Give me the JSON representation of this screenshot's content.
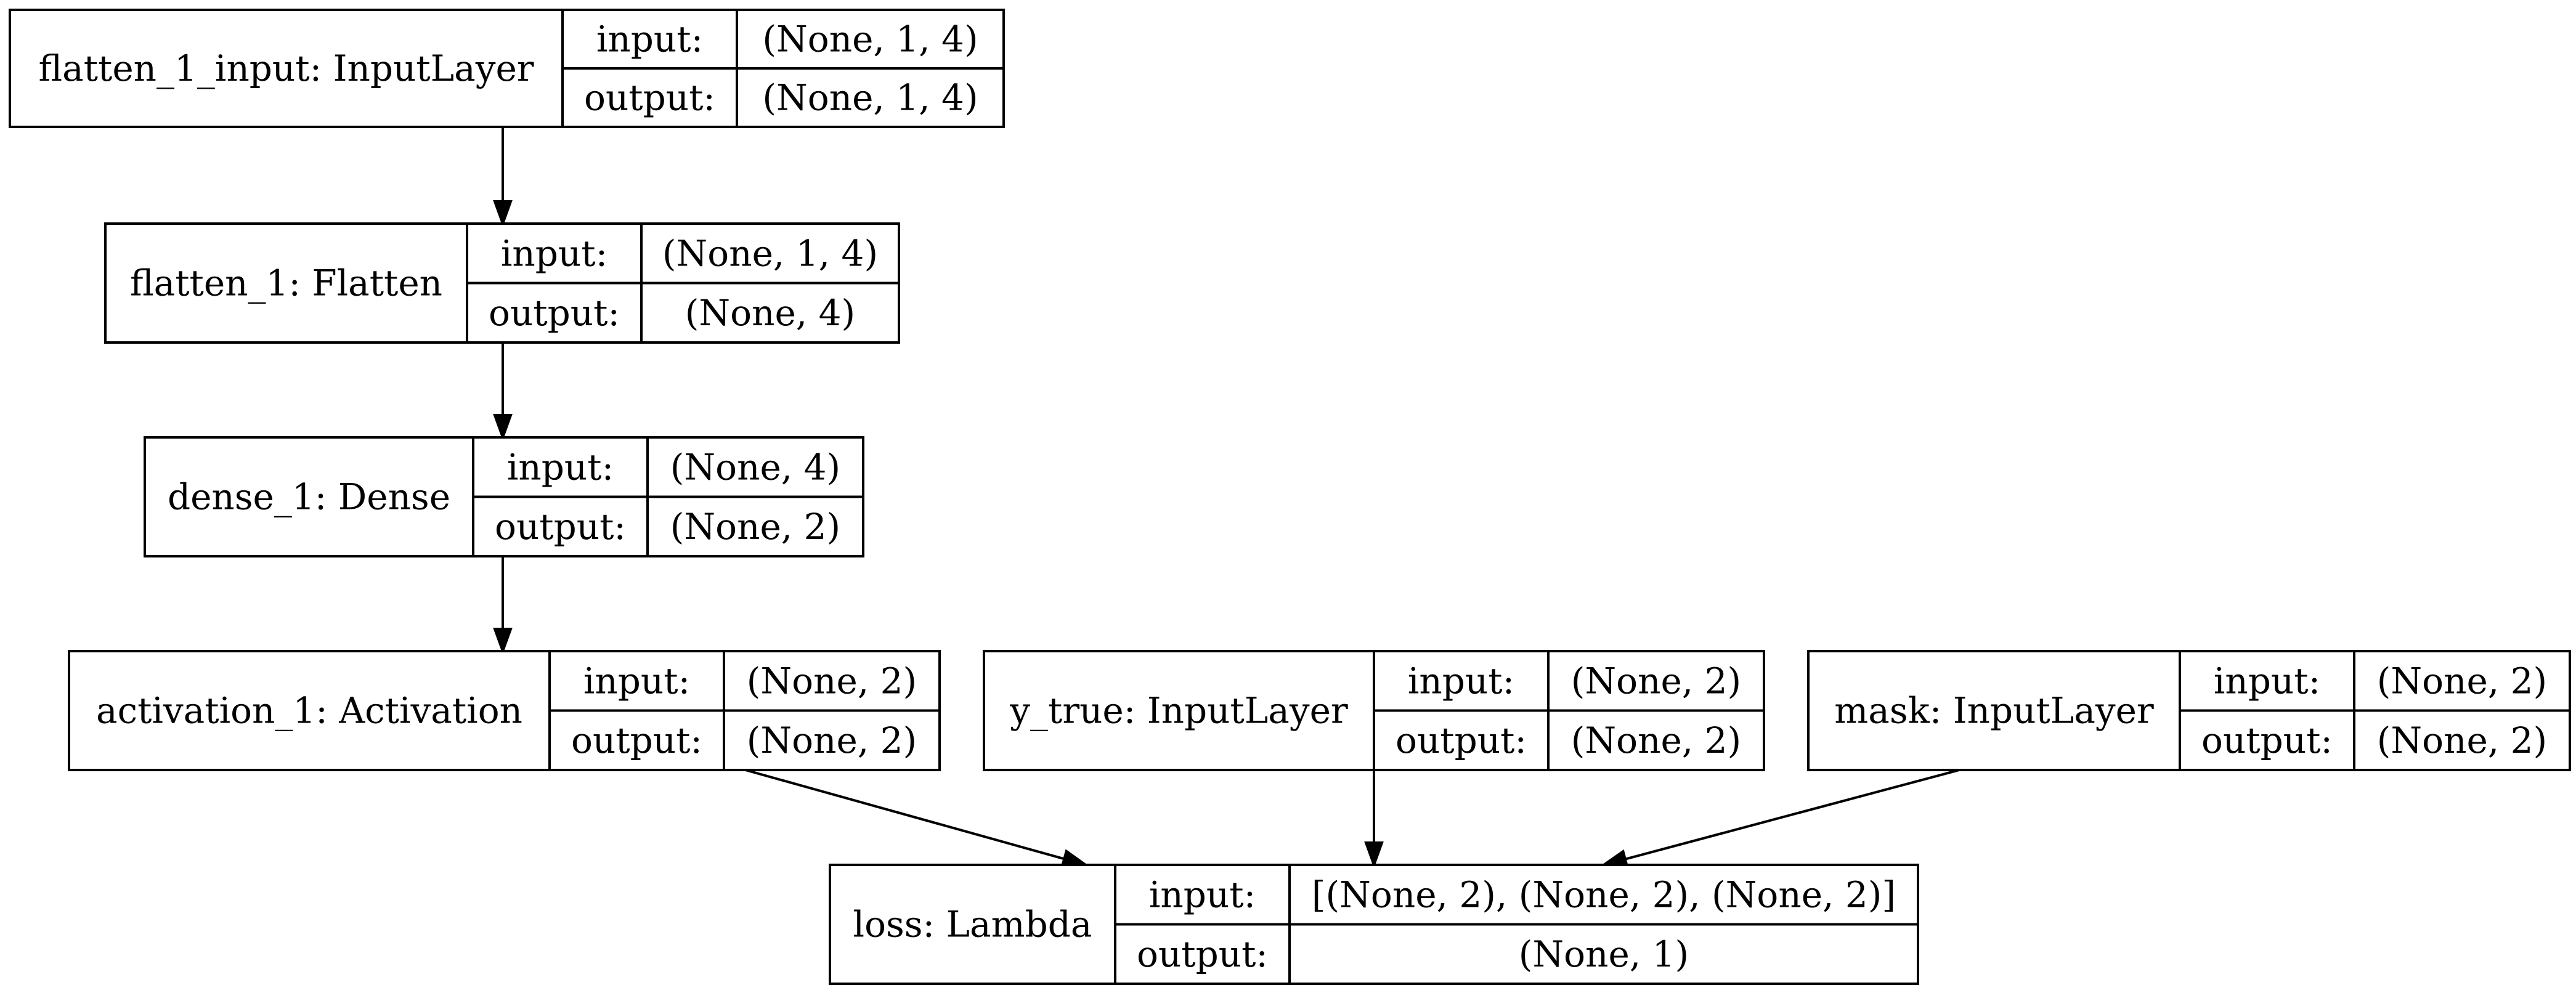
{
  "nodes": [
    {
      "id": "flatten_1_input",
      "name": "flatten_1_input: InputLayer",
      "input_label": "input:",
      "output_label": "output:",
      "input_shape": "(None, 1, 4)",
      "output_shape": "(None, 1, 4)"
    },
    {
      "id": "flatten_1",
      "name": "flatten_1: Flatten",
      "input_label": "input:",
      "output_label": "output:",
      "input_shape": "(None, 1, 4)",
      "output_shape": "(None, 4)"
    },
    {
      "id": "dense_1",
      "name": "dense_1: Dense",
      "input_label": "input:",
      "output_label": "output:",
      "input_shape": "(None, 4)",
      "output_shape": "(None, 2)"
    },
    {
      "id": "activation_1",
      "name": "activation_1: Activation",
      "input_label": "input:",
      "output_label": "output:",
      "input_shape": "(None, 2)",
      "output_shape": "(None, 2)"
    },
    {
      "id": "y_true",
      "name": "y_true: InputLayer",
      "input_label": "input:",
      "output_label": "output:",
      "input_shape": "(None, 2)",
      "output_shape": "(None, 2)"
    },
    {
      "id": "mask",
      "name": "mask: InputLayer",
      "input_label": "input:",
      "output_label": "output:",
      "input_shape": "(None, 2)",
      "output_shape": "(None, 2)"
    },
    {
      "id": "loss",
      "name": "loss: Lambda",
      "input_label": "input:",
      "output_label": "output:",
      "input_shape": "[(None, 2), (None, 2), (None, 2)]",
      "output_shape": "(None, 1)"
    }
  ],
  "edges": [
    {
      "from": "flatten_1_input",
      "to": "flatten_1"
    },
    {
      "from": "flatten_1",
      "to": "dense_1"
    },
    {
      "from": "dense_1",
      "to": "activation_1"
    },
    {
      "from": "activation_1",
      "to": "loss"
    },
    {
      "from": "y_true",
      "to": "loss"
    },
    {
      "from": "mask",
      "to": "loss"
    }
  ]
}
